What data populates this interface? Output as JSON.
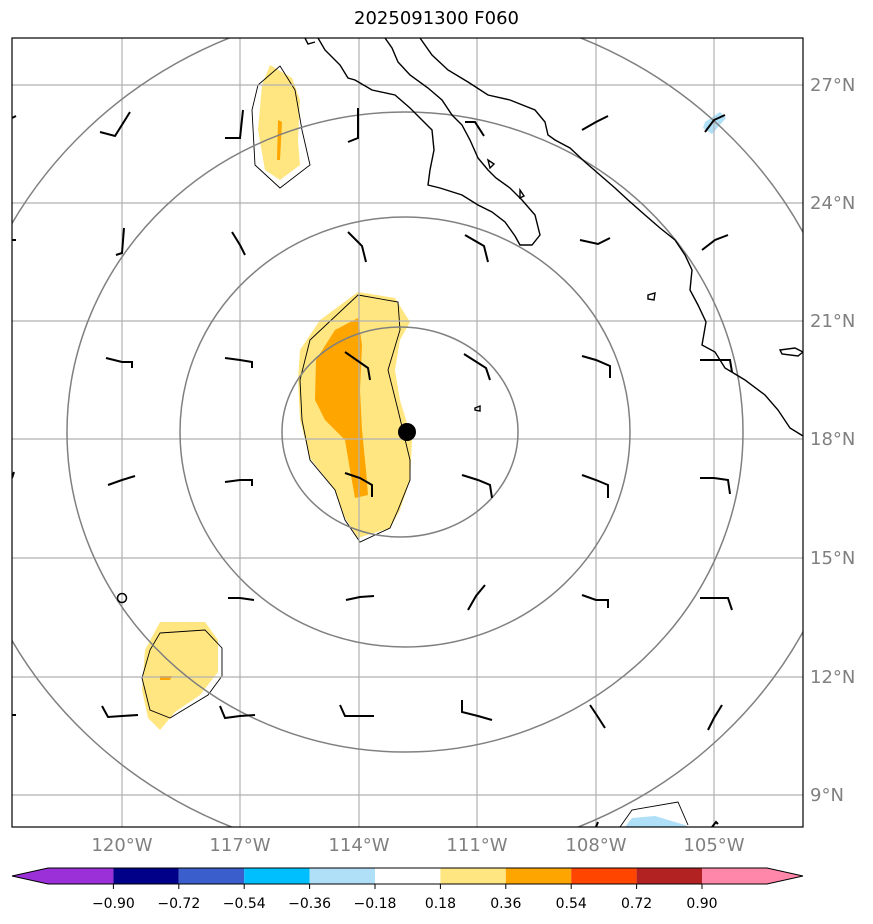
{
  "title": "2025091300 F060",
  "map": {
    "lat_labels": [
      "27°N",
      "24°N",
      "21°N",
      "18°N",
      "15°N",
      "12°N",
      "9°N"
    ],
    "lon_labels": [
      "120°W",
      "117°W",
      "114°W",
      "111°W",
      "108°W",
      "105°W"
    ],
    "lat_values": [
      27,
      24,
      21,
      18,
      15,
      12,
      9
    ],
    "lon_values": [
      -120,
      -117,
      -114,
      -111,
      -108,
      -105
    ],
    "extent": {
      "lon_min": -123,
      "lon_max": -102.8,
      "lat_min": 8.0,
      "lat_max": 28.2
    },
    "storm_center": {
      "lon": -112.3,
      "lat": 18.2
    },
    "range_ring_count": 4,
    "colors": {
      "grid": "#b0b0b0",
      "rings": "#808080",
      "coast": "#000000",
      "center": "#000000"
    }
  },
  "colorbar": {
    "tick_labels": [
      "−0.90",
      "−0.72",
      "−0.54",
      "−0.36",
      "−0.18",
      "0.18",
      "0.36",
      "0.54",
      "0.72",
      "0.90"
    ],
    "colors": [
      "#9b30d9",
      "#000088",
      "#3a5fcd",
      "#00bfff",
      "#b0e0f8",
      "#ffffff",
      "#ffe680",
      "#ffa500",
      "#ff4500",
      "#b22222",
      "#ff88aa"
    ]
  }
}
